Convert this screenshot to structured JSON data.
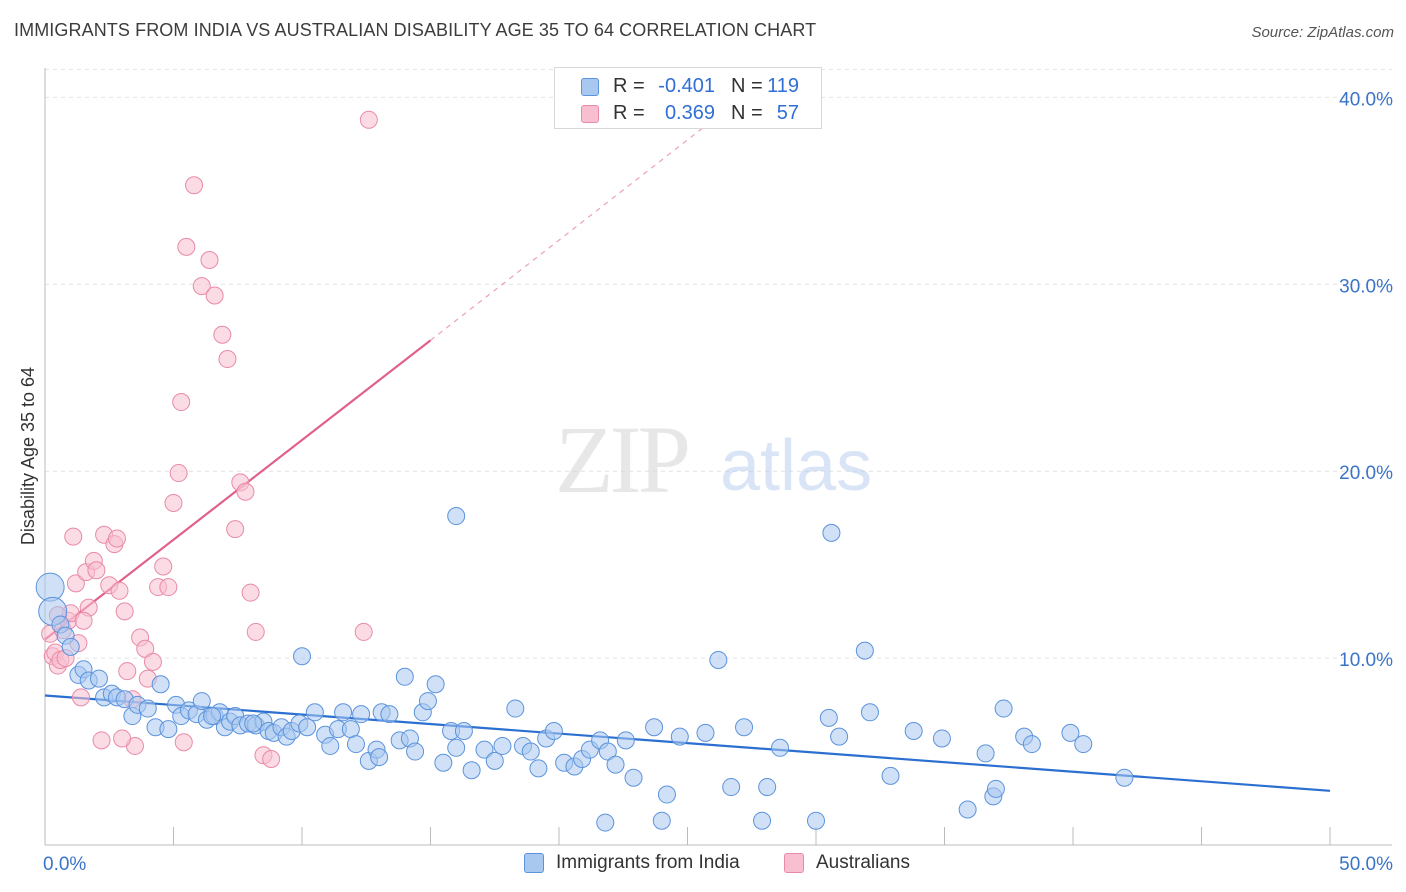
{
  "title": "IMMIGRANTS FROM INDIA VS AUSTRALIAN DISABILITY AGE 35 TO 64 CORRELATION CHART",
  "source": "Source: ZipAtlas.com",
  "watermark": {
    "zip": "ZIP",
    "atlas": "atlas"
  },
  "legend": {
    "india": {
      "r_label": "R =",
      "r_value": "-0.401",
      "n_label": "N =",
      "n_value": "119"
    },
    "aus": {
      "r_label": "R =",
      "r_value": "0.369",
      "n_label": "N =",
      "n_value": "57"
    }
  },
  "colors": {
    "india_fill": "#a9c8f0",
    "india_stroke": "#5b93dc",
    "india_line": "#2b6fd0",
    "aus_fill": "#f7bfd0",
    "aus_stroke": "#e98aa8",
    "aus_line": "#e0608a",
    "tick_text": "#3a74c8",
    "grid": "#e2e2e2"
  },
  "chart_data": {
    "type": "scatter",
    "title": "IMMIGRANTS FROM INDIA VS AUSTRALIAN DISABILITY AGE 35 TO 64 CORRELATION CHART",
    "xlabel": "",
    "ylabel": "Disability Age 35 to 64",
    "xlim": [
      0,
      50
    ],
    "ylim": [
      0,
      42
    ],
    "x_tick_labels": [
      "0.0%",
      "50.0%"
    ],
    "y_ticks": [
      10,
      20,
      30,
      40
    ],
    "y_tick_labels": [
      "10.0%",
      "20.0%",
      "30.0%",
      "40.0%"
    ],
    "grid": true,
    "legend_position": "top-center",
    "series": [
      {
        "name": "Immigrants from India",
        "r": -0.401,
        "n": 119,
        "trend": {
          "x": [
            0,
            50
          ],
          "y": [
            8.0,
            2.9
          ]
        },
        "points": [
          [
            0.2,
            13.8
          ],
          [
            0.3,
            12.5
          ],
          [
            0.6,
            11.8
          ],
          [
            0.8,
            11.2
          ],
          [
            1.0,
            10.6
          ],
          [
            1.3,
            9.1
          ],
          [
            1.5,
            9.4
          ],
          [
            1.7,
            8.8
          ],
          [
            2.1,
            8.9
          ],
          [
            2.3,
            7.9
          ],
          [
            2.6,
            8.1
          ],
          [
            2.8,
            7.9
          ],
          [
            3.1,
            7.8
          ],
          [
            3.4,
            6.9
          ],
          [
            3.6,
            7.5
          ],
          [
            4.0,
            7.3
          ],
          [
            4.3,
            6.3
          ],
          [
            4.5,
            8.6
          ],
          [
            4.8,
            6.2
          ],
          [
            5.1,
            7.5
          ],
          [
            5.3,
            6.9
          ],
          [
            5.6,
            7.2
          ],
          [
            5.9,
            7.0
          ],
          [
            6.1,
            7.7
          ],
          [
            6.3,
            6.7
          ],
          [
            6.6,
            6.9
          ],
          [
            6.8,
            7.1
          ],
          [
            7.0,
            6.3
          ],
          [
            7.2,
            6.6
          ],
          [
            7.4,
            6.9
          ],
          [
            7.6,
            6.4
          ],
          [
            7.9,
            6.5
          ],
          [
            8.2,
            6.4
          ],
          [
            8.5,
            6.6
          ],
          [
            8.7,
            6.1
          ],
          [
            8.9,
            6.0
          ],
          [
            9.2,
            6.3
          ],
          [
            9.4,
            5.8
          ],
          [
            9.6,
            6.1
          ],
          [
            9.9,
            6.5
          ],
          [
            10.2,
            6.3
          ],
          [
            10.5,
            7.1
          ],
          [
            10.9,
            5.9
          ],
          [
            11.1,
            5.3
          ],
          [
            11.4,
            6.2
          ],
          [
            11.6,
            7.1
          ],
          [
            11.9,
            6.2
          ],
          [
            12.1,
            5.4
          ],
          [
            12.3,
            7.0
          ],
          [
            12.6,
            4.5
          ],
          [
            12.9,
            5.1
          ],
          [
            13.1,
            7.1
          ],
          [
            13.4,
            7.0
          ],
          [
            13.8,
            5.6
          ],
          [
            14.0,
            9.0
          ],
          [
            14.2,
            5.7
          ],
          [
            14.4,
            5.0
          ],
          [
            14.7,
            7.1
          ],
          [
            14.9,
            7.7
          ],
          [
            15.2,
            8.6
          ],
          [
            15.5,
            4.4
          ],
          [
            15.8,
            6.1
          ],
          [
            16.0,
            5.2
          ],
          [
            16.3,
            6.1
          ],
          [
            16.6,
            4.0
          ],
          [
            17.1,
            5.1
          ],
          [
            17.5,
            4.5
          ],
          [
            17.8,
            5.3
          ],
          [
            18.3,
            7.3
          ],
          [
            18.6,
            5.3
          ],
          [
            18.9,
            5.0
          ],
          [
            19.2,
            4.1
          ],
          [
            19.5,
            5.7
          ],
          [
            19.8,
            6.1
          ],
          [
            20.2,
            4.4
          ],
          [
            20.6,
            4.2
          ],
          [
            20.9,
            4.6
          ],
          [
            21.2,
            5.1
          ],
          [
            21.6,
            5.6
          ],
          [
            21.9,
            5.0
          ],
          [
            22.2,
            4.3
          ],
          [
            22.6,
            5.6
          ],
          [
            22.9,
            3.6
          ],
          [
            23.7,
            6.3
          ],
          [
            24.2,
            2.7
          ],
          [
            24.7,
            5.8
          ],
          [
            25.7,
            6.0
          ],
          [
            26.2,
            9.9
          ],
          [
            26.7,
            3.1
          ],
          [
            27.2,
            6.3
          ],
          [
            28.1,
            3.1
          ],
          [
            28.6,
            5.2
          ],
          [
            30.5,
            6.8
          ],
          [
            30.9,
            5.8
          ],
          [
            31.9,
            10.4
          ],
          [
            32.1,
            7.1
          ],
          [
            32.9,
            3.7
          ],
          [
            33.8,
            6.1
          ],
          [
            34.9,
            5.7
          ],
          [
            35.9,
            1.9
          ],
          [
            36.9,
            2.6
          ],
          [
            37.0,
            3.0
          ],
          [
            37.3,
            7.3
          ],
          [
            38.1,
            5.8
          ],
          [
            38.4,
            5.4
          ],
          [
            39.9,
            6.0
          ],
          [
            40.4,
            5.4
          ],
          [
            42.0,
            3.6
          ],
          [
            36.6,
            4.9
          ],
          [
            30.0,
            1.3
          ],
          [
            27.9,
            1.3
          ],
          [
            24.0,
            1.3
          ],
          [
            21.8,
            1.2
          ],
          [
            16.0,
            17.6
          ],
          [
            30.6,
            16.7
          ],
          [
            13.0,
            4.7
          ],
          [
            10.0,
            10.1
          ],
          [
            8.1,
            6.5
          ],
          [
            6.5,
            6.9
          ]
        ]
      },
      {
        "name": "Australians",
        "r": 0.369,
        "n": 57,
        "trend": {
          "x": [
            0,
            15
          ],
          "y": [
            11.0,
            27.0
          ],
          "x_dashed_end": 26,
          "y_dashed_end": 38.8
        },
        "points": [
          [
            0.2,
            11.3
          ],
          [
            0.3,
            10.1
          ],
          [
            0.4,
            10.3
          ],
          [
            0.5,
            9.6
          ],
          [
            0.6,
            9.9
          ],
          [
            0.7,
            11.5
          ],
          [
            0.8,
            10.0
          ],
          [
            0.9,
            12.0
          ],
          [
            1.0,
            12.4
          ],
          [
            1.1,
            16.5
          ],
          [
            1.2,
            14.0
          ],
          [
            1.3,
            10.8
          ],
          [
            1.4,
            7.9
          ],
          [
            1.6,
            14.6
          ],
          [
            1.7,
            12.7
          ],
          [
            1.9,
            15.2
          ],
          [
            2.0,
            14.7
          ],
          [
            2.2,
            5.6
          ],
          [
            2.3,
            16.6
          ],
          [
            2.5,
            13.9
          ],
          [
            2.7,
            16.1
          ],
          [
            2.8,
            16.4
          ],
          [
            2.9,
            13.6
          ],
          [
            3.1,
            12.5
          ],
          [
            3.2,
            9.3
          ],
          [
            3.4,
            7.8
          ],
          [
            3.5,
            5.3
          ],
          [
            3.7,
            11.1
          ],
          [
            3.9,
            10.5
          ],
          [
            4.0,
            8.9
          ],
          [
            4.2,
            9.8
          ],
          [
            4.4,
            13.8
          ],
          [
            4.6,
            14.9
          ],
          [
            4.8,
            13.8
          ],
          [
            5.0,
            18.3
          ],
          [
            5.2,
            19.9
          ],
          [
            5.3,
            23.7
          ],
          [
            5.5,
            32.0
          ],
          [
            5.8,
            35.3
          ],
          [
            6.1,
            29.9
          ],
          [
            6.4,
            31.3
          ],
          [
            6.6,
            29.4
          ],
          [
            6.9,
            27.3
          ],
          [
            7.1,
            26.0
          ],
          [
            7.4,
            16.9
          ],
          [
            7.6,
            19.4
          ],
          [
            7.8,
            18.9
          ],
          [
            8.0,
            13.5
          ],
          [
            8.2,
            11.4
          ],
          [
            8.5,
            4.8
          ],
          [
            8.8,
            4.6
          ],
          [
            5.4,
            5.5
          ],
          [
            3.0,
            5.7
          ],
          [
            12.4,
            11.4
          ],
          [
            12.6,
            38.8
          ],
          [
            1.5,
            12.0
          ],
          [
            0.5,
            12.3
          ]
        ]
      }
    ]
  },
  "bottom_legend": [
    "Immigrants from India",
    "Australians"
  ]
}
